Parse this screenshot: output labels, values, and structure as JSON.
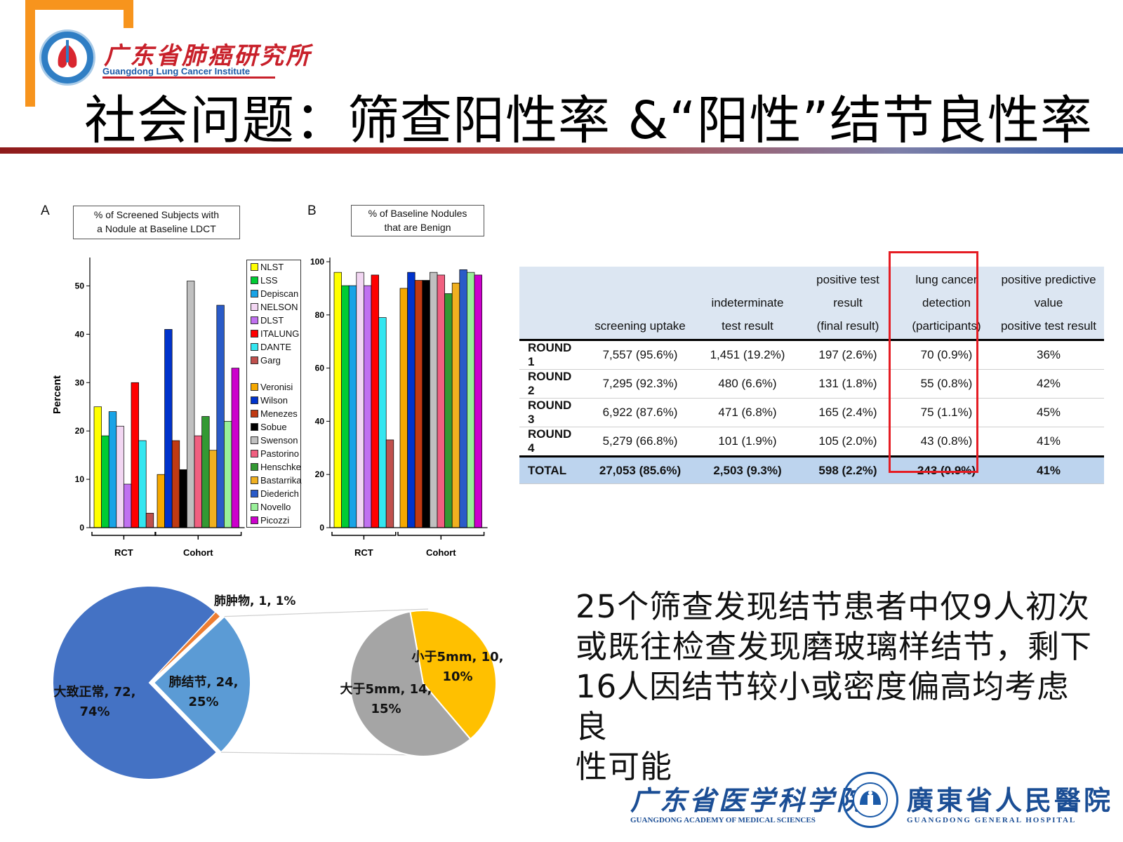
{
  "institute": {
    "name_cn": "广东省肺癌研究所",
    "name_en": "Guangdong Lung Cancer Institute"
  },
  "slide_title": "社会问题：筛查阳性率 &“阳性”结节良性率",
  "colors": {
    "accent_orange": "#f7941d",
    "brand_red": "#c8202a",
    "brand_blue": "#1b4e95",
    "highlight_red": "#e51c23"
  },
  "chart_data": [
    {
      "panel_letter": "A",
      "type": "bar",
      "title": "% of Screened Subjects with a Nodule at Baseline LDCT",
      "title_lines": [
        "% of Screened Subjects with",
        "a Nodule at Baseline LDCT"
      ],
      "ylabel": "Percent",
      "ylim": [
        0,
        55
      ],
      "yticks": [
        0,
        10,
        20,
        30,
        40,
        50
      ],
      "groups": [
        {
          "label": "RCT",
          "series": [
            {
              "name": "NLST",
              "value": 25,
              "color": "#ffff00"
            },
            {
              "name": "LSS",
              "value": 19,
              "color": "#00cc33"
            },
            {
              "name": "Depiscan",
              "value": 24,
              "color": "#19a3e6"
            },
            {
              "name": "NELSON",
              "value": 21,
              "color": "#f2d6f2"
            },
            {
              "name": "DLST",
              "value": 9,
              "color": "#c070f0"
            },
            {
              "name": "ITALUNG",
              "value": 30,
              "color": "#ff0000"
            },
            {
              "name": "DANTE",
              "value": 18,
              "color": "#33e6f0"
            },
            {
              "name": "Garg",
              "value": 3,
              "color": "#c0504d"
            }
          ]
        },
        {
          "label": "Cohort",
          "series": [
            {
              "name": "Veronisi",
              "value": 11,
              "color": "#f5a800"
            },
            {
              "name": "Wilson",
              "value": 41,
              "color": "#0033cc"
            },
            {
              "name": "Menezes",
              "value": 18,
              "color": "#c03a12"
            },
            {
              "name": "Sobue",
              "value": 12,
              "color": "#000000"
            },
            {
              "name": "Swenson",
              "value": 51,
              "color": "#c0c0c0"
            },
            {
              "name": "Pastorino",
              "value": 19,
              "color": "#f06080"
            },
            {
              "name": "Henschke",
              "value": 23,
              "color": "#339933"
            },
            {
              "name": "Bastarrika",
              "value": 16,
              "color": "#f0b020"
            },
            {
              "name": "Diederich",
              "value": 46,
              "color": "#2a5bc8"
            },
            {
              "name": "Novello",
              "value": 22,
              "color": "#99f099"
            },
            {
              "name": "Picozzi",
              "value": 33,
              "color": "#cc00cc"
            }
          ]
        }
      ]
    },
    {
      "panel_letter": "B",
      "type": "bar",
      "title": "% of Baseline Nodules that are Benign",
      "title_lines": [
        "% of Baseline Nodules",
        "that are Benign"
      ],
      "ylim": [
        0,
        100
      ],
      "yticks": [
        0,
        20,
        40,
        60,
        80,
        100
      ],
      "groups": [
        {
          "label": "RCT",
          "values": [
            96,
            91,
            91,
            96,
            91,
            95,
            79,
            33
          ]
        },
        {
          "label": "Cohort",
          "values": [
            90,
            96,
            93,
            93,
            96,
            95,
            88,
            92,
            97,
            96,
            95
          ]
        }
      ]
    },
    {
      "type": "pie",
      "slices": [
        {
          "label": "大致正常, 72, 74%",
          "name": "大致正常",
          "value": 72,
          "percent": 74,
          "color": "#4472c4"
        },
        {
          "label": "肺结节, 24, 25%",
          "name": "肺结节",
          "value": 24,
          "percent": 25,
          "color": "#5b9bd5"
        },
        {
          "label": "肺肿物, 1, 1%",
          "name": "肺肿物",
          "value": 1,
          "percent": 1,
          "color": "#ed7d31"
        }
      ]
    },
    {
      "type": "pie",
      "slices": [
        {
          "label": "小于5mm, 10, 10%",
          "name": "小于5mm",
          "value": 10,
          "percent": 10,
          "color": "#ffc000"
        },
        {
          "label": "大于5mm, 14, 15%",
          "name": "大于5mm",
          "value": 14,
          "percent": 15,
          "color": "#a5a5a5"
        }
      ]
    }
  ],
  "table": {
    "headers": [
      [
        ""
      ],
      [
        "screening uptake"
      ],
      [
        "indeterminate",
        "test result"
      ],
      [
        "positive test",
        "result",
        "(final result)"
      ],
      [
        "lung cancer",
        "detection",
        "(participants)"
      ],
      [
        "positive predictive",
        "value",
        "positive test result"
      ]
    ],
    "rows": [
      {
        "label": "ROUND 1",
        "cells": [
          "7,557 (95.6%)",
          "1,451 (19.2%)",
          "197 (2.6%)",
          "70 (0.9%)",
          "36%"
        ]
      },
      {
        "label": "ROUND 2",
        "cells": [
          "7,295 (92.3%)",
          "480 (6.6%)",
          "131 (1.8%)",
          "55 (0.8%)",
          "42%"
        ]
      },
      {
        "label": "ROUND 3",
        "cells": [
          "6,922 (87.6%)",
          "471 (6.8%)",
          "165 (2.4%)",
          "75 (1.1%)",
          "45%"
        ]
      },
      {
        "label": "ROUND 4",
        "cells": [
          "5,279 (66.8%)",
          "101 (1.9%)",
          "105 (2.0%)",
          "43 (0.8%)",
          "41%"
        ]
      }
    ],
    "total": {
      "label": "TOTAL",
      "cells": [
        "27,053 (85.6%)",
        "2,503 (9.3%)",
        "598 (2.2%)",
        "243 (0.9%)",
        "41%"
      ]
    }
  },
  "summary": {
    "lines": [
      "25个筛查发现结节患者中仅9人初次",
      "或既往检查发现磨玻璃样结节，剩下",
      "16人因结节较小或密度偏高均考虑良",
      "性可能"
    ]
  },
  "footer": {
    "gams_cn": "广东省医学科学院",
    "gams_en": "GUANGDONG ACADEMY OF MEDICAL SCIENCES",
    "seal_text": "广东省医学科学院·广东省人民医院 GAMS·GGH",
    "ggh_cn": "廣東省人民醫院",
    "ggh_en": "GUANGDONG GENERAL HOSPITAL"
  }
}
